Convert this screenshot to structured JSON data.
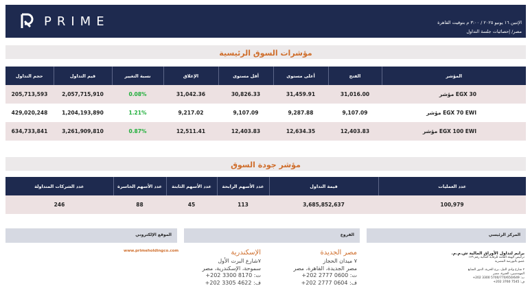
{
  "header": {
    "brand": "PRIME",
    "date_line": "الإثنين ١٦ يونيو ٢٠٢٥ / ٣:٠٠ م بتوقيت القاهرة",
    "sub_line": "مصر/ إحصائيات جلسة التداول"
  },
  "indices": {
    "title": "مؤشرات السوق الرئيسية",
    "columns": [
      "المؤشر",
      "الفتح",
      "أعلى مستوى",
      "أقل مستوى",
      "الإغلاق",
      "نسبة التغيير",
      "قيم التداول",
      "حجم التداول"
    ],
    "rows": [
      {
        "name": "مؤشر EGX 30",
        "open": "31,016.00",
        "high": "31,459.91",
        "low": "30,826.33",
        "close": "31,042.36",
        "change": "0.08%",
        "value": "2,057,715,910",
        "volume": "205,713,593"
      },
      {
        "name": "مؤشر EGX 70 EWI",
        "open": "9,107.09",
        "high": "9,287.88",
        "low": "9,107.09",
        "close": "9,217.02",
        "change": "1.21%",
        "value": "1,204,193,890",
        "volume": "429,020,248"
      },
      {
        "name": "مؤشر EGX 100 EWI",
        "open": "12,403.83",
        "high": "12,634.35",
        "low": "12,403.83",
        "close": "12,511.41",
        "change": "0.87%",
        "value": "3,261,909,810",
        "volume": "634,733,841"
      }
    ]
  },
  "quality": {
    "title": "مؤشر جودة السوق",
    "columns": [
      "عدد العمليات",
      "قيمة التداول",
      "عدد الأسهم الرابحة",
      "عدد الأسهم الثابتة",
      "عدد الأسهم الخاسرة",
      "عدد الشركات المتداولة"
    ],
    "row": {
      "operations": "100,979",
      "value": "3,685,852,637",
      "gainers": "113",
      "unchanged": "45",
      "losers": "88",
      "companies": "246"
    }
  },
  "footer": {
    "website_label": "الموقع الإلكتروني",
    "branches_label": "الفروع",
    "hq_label": "المركز الرئيسي",
    "website": "www.primeholdingco.com",
    "branch_1": {
      "name": "مصر الجديدة",
      "lines": [
        "٧ ميدان الحجاز",
        "مصر الجديدة، القاهرة، مصر",
        "ت: 0600 2777 202+",
        "ف: 0604 2777 202+"
      ]
    },
    "branch_2": {
      "name": "الإسكندرية",
      "lines": [
        "٧شارع البرت الأول",
        "سموحة، الإسكندرية، مصر",
        "ت: 8170 3300 202+",
        "ف: 4622 3305 202+"
      ]
    },
    "hq": {
      "name": "برايم لتداول الأوراق المالية ش.م.م.",
      "lines": [
        "ترخيص الهيئة العامة للرقابة المالية رقم ١٧٩",
        "عضو بالبورصة المصرية",
        "٢ شارع وادي النيل، برج الحرية، الدور السابع",
        "المهندسين، الجيزة، مصر",
        "ت: 5700/770/650/649 3300 202+",
        "ف: 7545 3760 202+"
      ]
    }
  }
}
